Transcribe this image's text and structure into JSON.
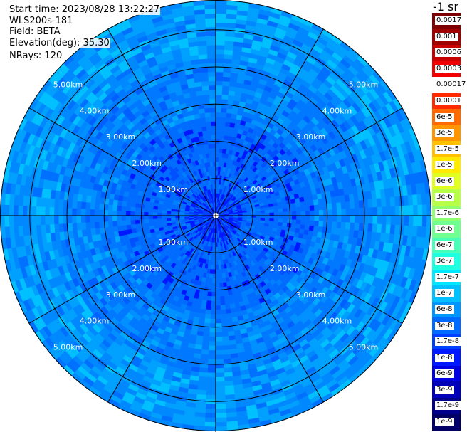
{
  "info": {
    "start_time": "Start time: 2023/08/28 13:22:27",
    "device": "WLS200s-181",
    "field": "Field: BETA",
    "elevation": "Elevation(deg): 35.30",
    "nrays": "NRays: 120"
  },
  "colorbar": {
    "unit": "-1 sr",
    "labels": [
      "0.0017",
      "0.001",
      "0.0006",
      "0.0003",
      "0.00017",
      "0.0001",
      "6e-5",
      "3e-5",
      "1.7e-5",
      "1e-5",
      "6e-6",
      "3e-6",
      "1.7e-6",
      "1e-6",
      "6e-7",
      "3e-7",
      "1.7e-7",
      "1e-7",
      "6e-8",
      "3e-8",
      "1.7e-8",
      "1e-8",
      "6e-9",
      "3e-9",
      "1.7e-9",
      "1e-9"
    ],
    "colors": [
      "#7f0000",
      "#a00000",
      "#c80000",
      "#f00000",
      "#ffffff",
      "#ff2a00",
      "#ff6a00",
      "#ff9600",
      "#ffc000",
      "#ffea00",
      "#e0ff20",
      "#b8ff48",
      "#90ff70",
      "#70ff90",
      "#48ffb8",
      "#20ffe0",
      "#00e8ff",
      "#00c0ff",
      "#0096ff",
      "#006cff",
      "#0040ff",
      "#0018ff",
      "#0000e0",
      "#0000b8",
      "#00008c",
      "#000066"
    ]
  },
  "chart_data": {
    "type": "heatmap",
    "projection": "polar (PPI scan)",
    "field": "BETA",
    "elevation_deg": 35.3,
    "n_rays": 120,
    "range_rings_km": [
      1,
      2,
      3,
      4,
      5
    ],
    "range_ring_labels": [
      "1.00km",
      "2.00km",
      "3.00km",
      "4.00km",
      "5.00km"
    ],
    "max_range_km": 5.8,
    "radials_deg": [
      0,
      30,
      60,
      90,
      120,
      150,
      180,
      210,
      240,
      270,
      300,
      330
    ],
    "dominant_value_approx": "1e-8 to 3e-8",
    "near_range_value_approx": "6e-9 to 1e-8",
    "far_range_value_approx": "3e-8 to 6e-8",
    "colorscale": "jet, log scale from 1e-9 to 0.0017"
  }
}
